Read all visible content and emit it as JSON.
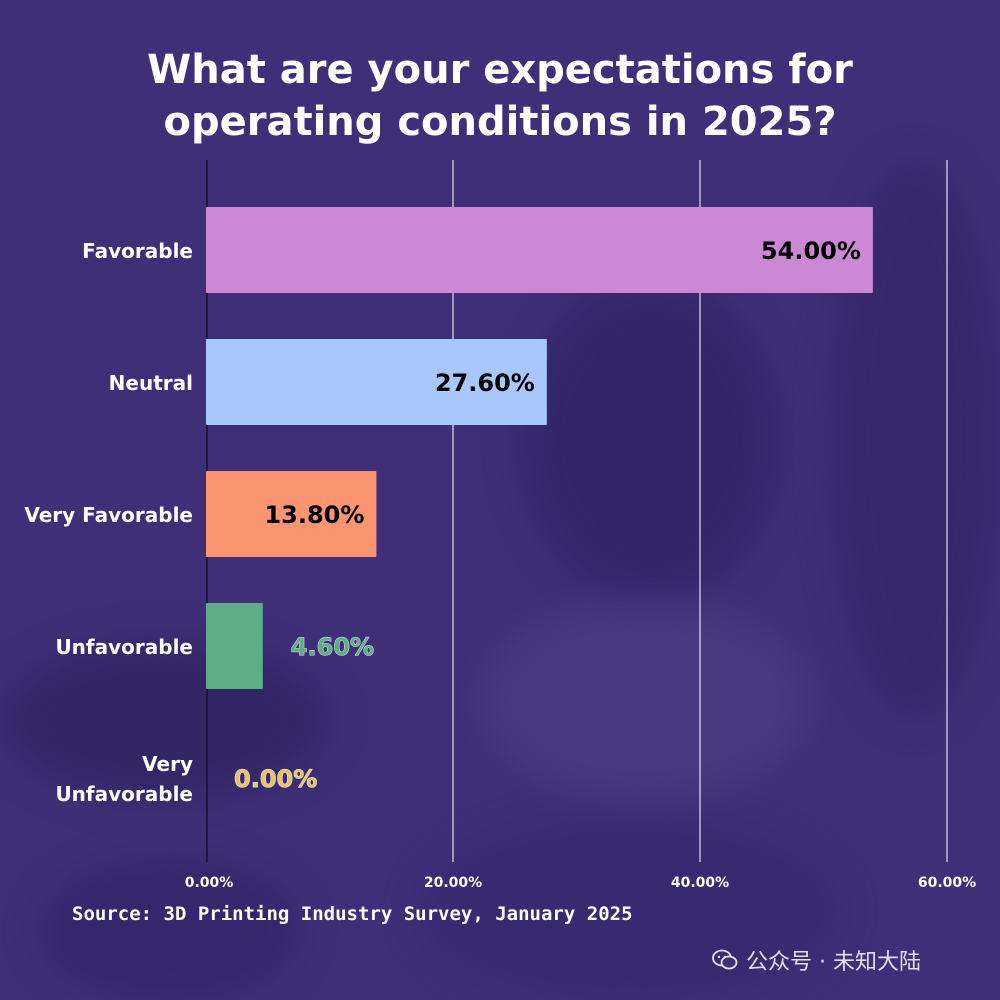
{
  "title_line1": "What are your expectations for",
  "title_line2": "operating conditions in 2025?",
  "source": "Source: 3D Printing Industry Survey, January 2025",
  "watermark": "公众号 · 未知大陆",
  "chart_data": {
    "type": "bar",
    "orientation": "horizontal",
    "categories": [
      [
        "Favorable"
      ],
      [
        "Neutral"
      ],
      [
        "Very Favorable"
      ],
      [
        "Unfavorable"
      ],
      [
        "Very",
        "Unfavorable"
      ]
    ],
    "values": [
      54.0,
      27.6,
      13.8,
      4.6,
      0.0
    ],
    "data_labels": [
      "54.00%",
      "27.60%",
      "13.80%",
      "4.60%",
      "0.00%"
    ],
    "colors": [
      "#cc88d4",
      "#a8c8fb",
      "#fb9470",
      "#5fad87",
      "#e8c36a"
    ],
    "label_colors": [
      "#000000",
      "#000000",
      "#000000",
      "#5fad87",
      "#e8c36a"
    ],
    "xlim": [
      0,
      60
    ],
    "xticks": [
      0,
      20,
      40,
      60
    ],
    "xtick_labels": [
      "0.00%",
      "20.00%",
      "40.00%",
      "60.00%"
    ],
    "grid": true,
    "legend": "none"
  }
}
